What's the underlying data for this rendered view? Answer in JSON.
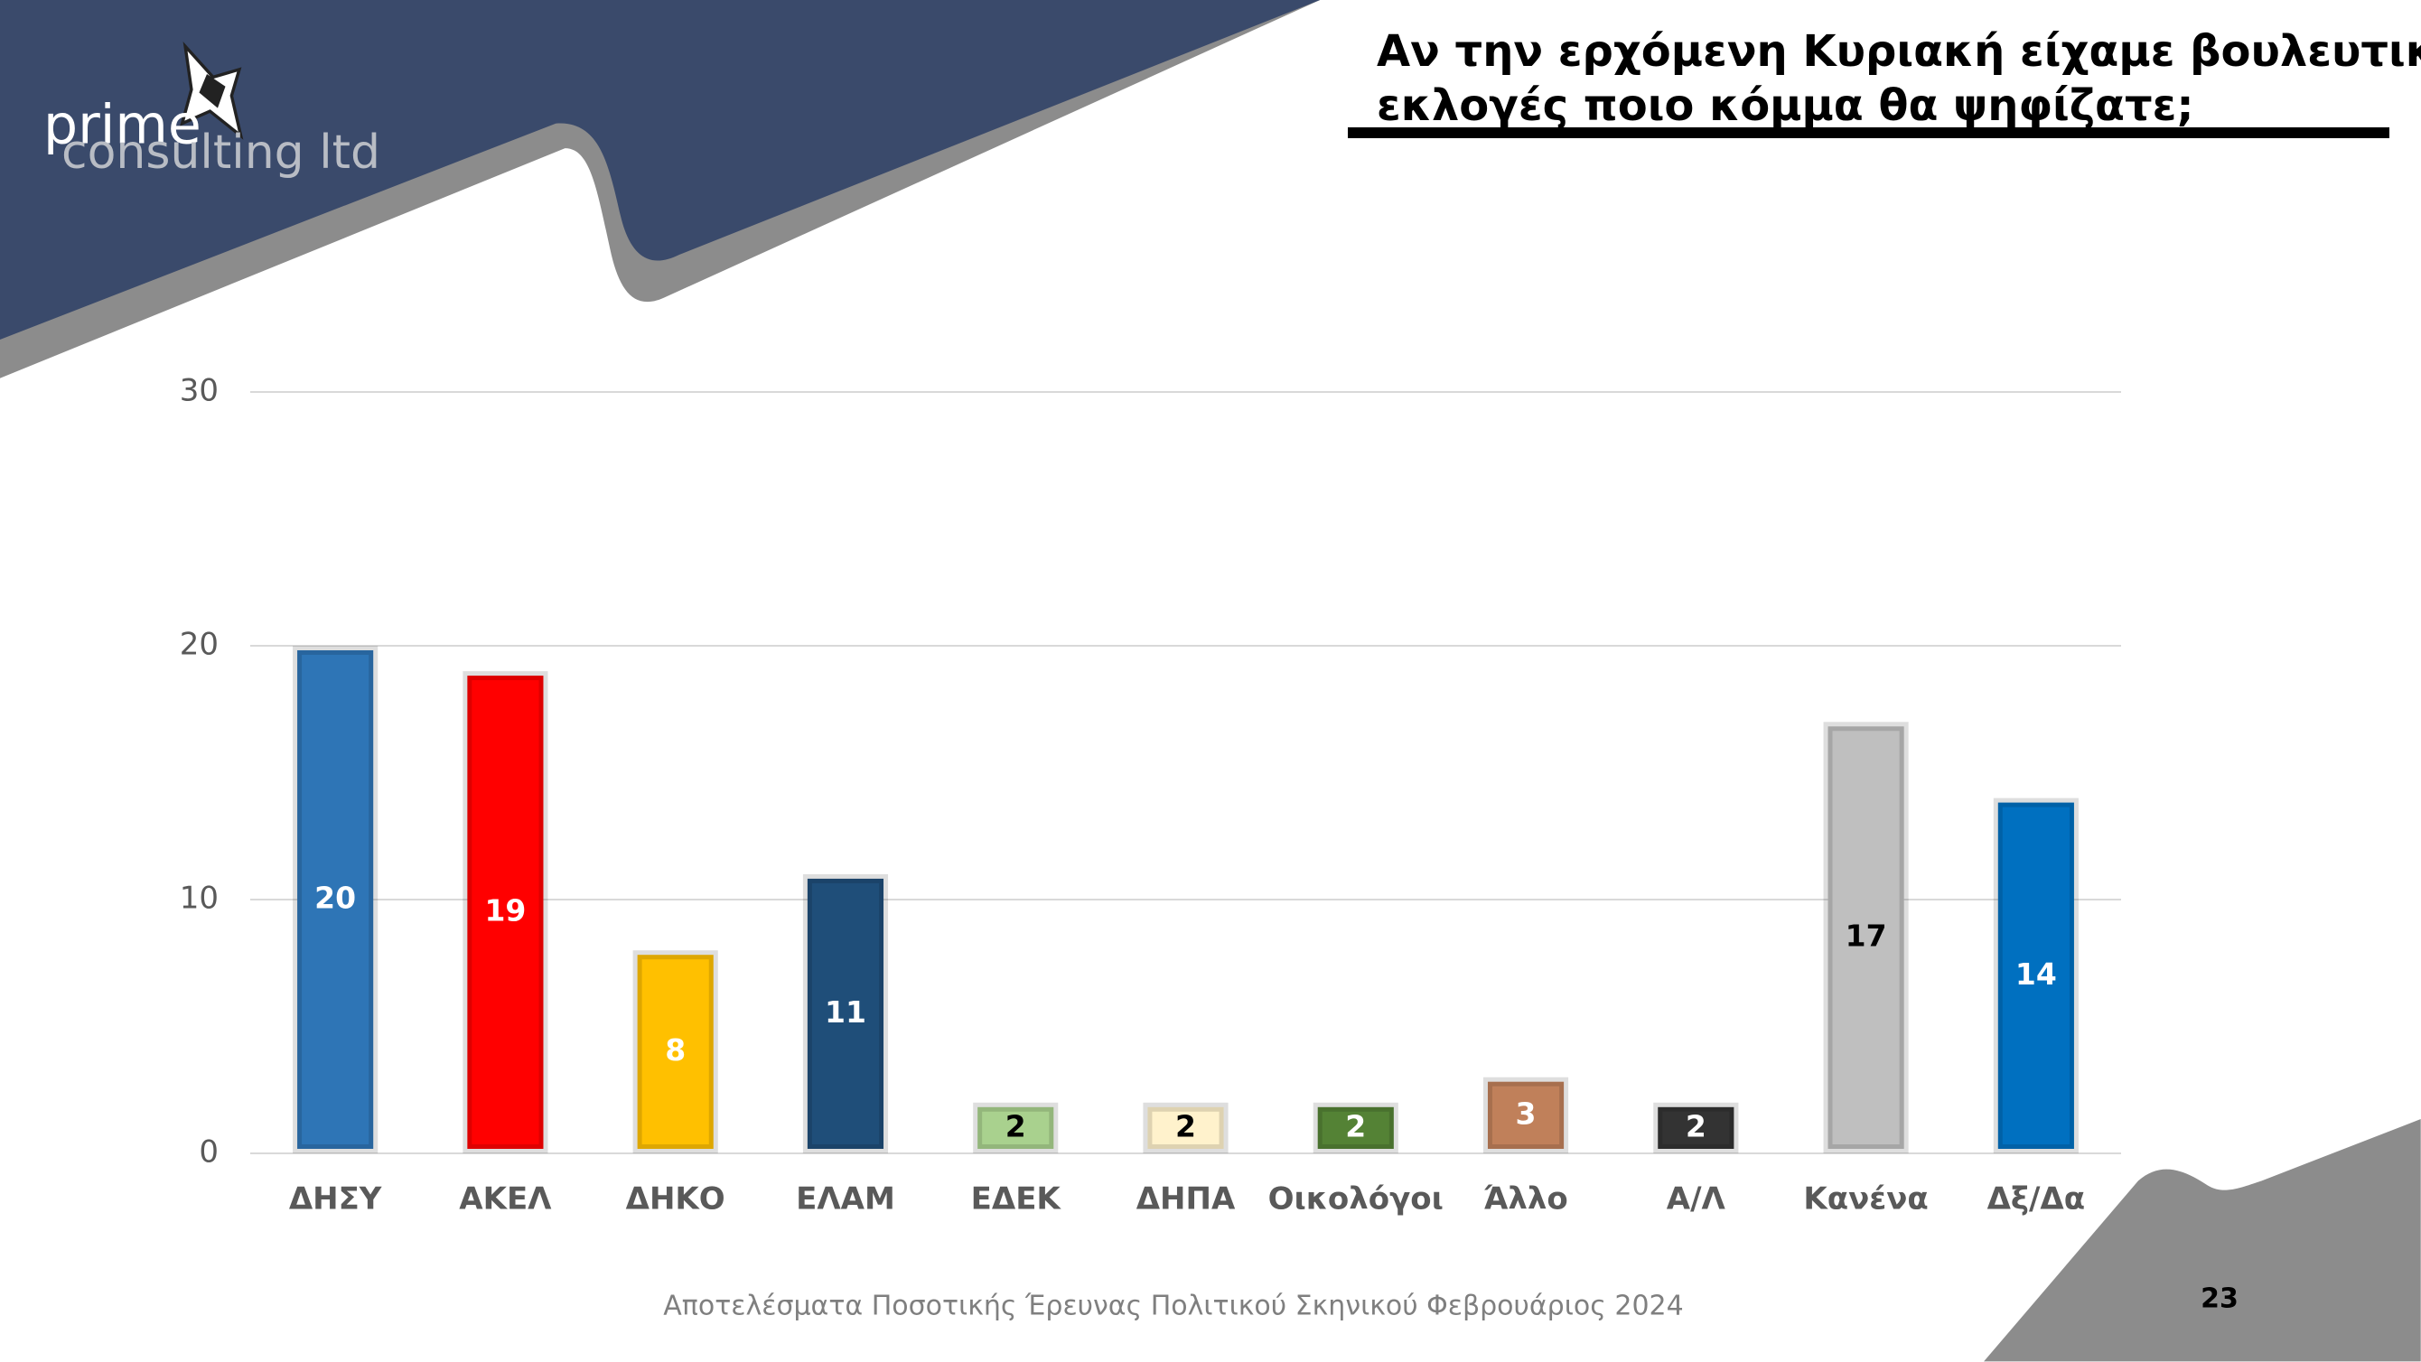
{
  "chart_data": {
    "type": "bar",
    "title": "Αν την ερχόμενη Κυριακή είχαμε βουλευτικές",
    "subtitle": "εκλογές ποιο κόμμα θα ψηφίζατε;",
    "categories": [
      "ΔΗΣΥ",
      "ΑΚΕΛ",
      "ΔΗΚΟ",
      "ΕΛΑΜ",
      "ΕΔΕΚ",
      "ΔΗΠΑ",
      "Οικολόγοι",
      "Άλλο",
      "Α/Λ",
      "Κανένα",
      "Δξ/Δα"
    ],
    "values": [
      20,
      19,
      8,
      11,
      2,
      2,
      2,
      3,
      2,
      17,
      14
    ],
    "colors": [
      "#2e75b6",
      "#ff0000",
      "#ffc000",
      "#1f4e79",
      "#a9d18e",
      "#fff2cc",
      "#548235",
      "#c0805a",
      "#333333",
      "#bfbfbf",
      "#0070c0"
    ],
    "label_colors": [
      "#ffffff",
      "#ffffff",
      "#ffffff",
      "#ffffff",
      "#000000",
      "#000000",
      "#ffffff",
      "#ffffff",
      "#ffffff",
      "#000000",
      "#ffffff"
    ],
    "ylim": [
      0,
      30
    ],
    "yticks": [
      0,
      10,
      20,
      30
    ],
    "grid": true,
    "logo": [
      "prime",
      "consulting ltd"
    ],
    "footer": "Αποτελέσματα Ποσοτικής Έρευνας Πολιτικού Σκηνικού Φεβρουάριος 2024",
    "page_number": 23
  }
}
